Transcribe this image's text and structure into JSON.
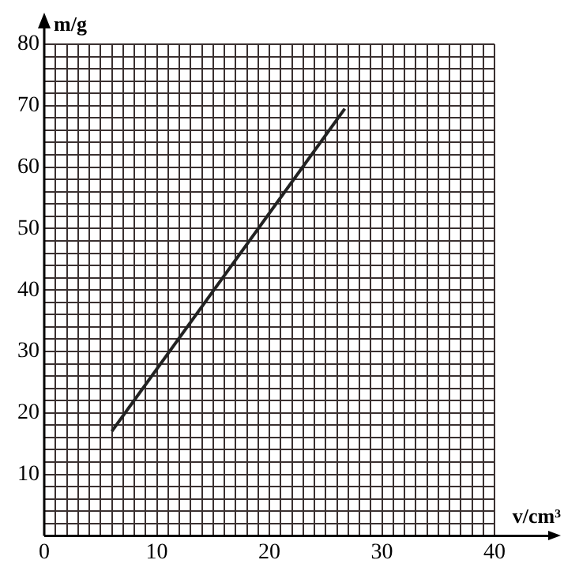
{
  "chart_data": {
    "type": "line",
    "xlabel": "v/cm³",
    "ylabel": "m/g",
    "x": [
      6,
      26.7
    ],
    "series": [
      {
        "color": "#222222",
        "values": [
          17,
          69.5
        ]
      }
    ],
    "xlim": [
      0,
      40
    ],
    "ylim": [
      0,
      80
    ],
    "xticks": [
      0,
      {
        "value": 1,
        "label": null
      },
      {
        "value": 2,
        "label": null
      },
      {
        "value": 3,
        "label": null
      },
      {
        "value": 4,
        "label": null
      },
      {
        "value": 5,
        "label": null
      },
      {
        "value": 6,
        "label": null
      },
      {
        "value": 7,
        "label": null
      },
      {
        "value": 8,
        "label": null
      },
      {
        "value": 9,
        "label": null
      },
      10,
      {
        "value": 11,
        "label": null
      },
      {
        "value": 12,
        "label": null
      },
      {
        "value": 13,
        "label": null
      },
      {
        "value": 14,
        "label": null
      },
      {
        "value": 15,
        "label": null
      },
      {
        "value": 16,
        "label": null
      },
      {
        "value": 17,
        "label": null
      },
      {
        "value": 18,
        "label": null
      },
      {
        "value": 19,
        "label": null
      },
      20,
      {
        "value": 21,
        "label": null
      },
      {
        "value": 22,
        "label": null
      },
      {
        "value": 23,
        "label": null
      },
      {
        "value": 24,
        "label": null
      },
      {
        "value": 25,
        "label": null
      },
      {
        "value": 26,
        "label": null
      },
      {
        "value": 27,
        "label": null
      },
      {
        "value": 28,
        "label": null
      },
      {
        "value": 29,
        "label": null
      },
      30,
      {
        "value": 31,
        "label": null
      },
      {
        "value": 32,
        "label": null
      },
      {
        "value": 33,
        "label": null
      },
      {
        "value": 34,
        "label": null
      },
      {
        "value": 35,
        "label": null
      },
      {
        "value": 36,
        "label": null
      },
      {
        "value": 37,
        "label": null
      },
      {
        "value": 38,
        "label": null
      },
      {
        "value": 39,
        "label": null
      },
      40
    ],
    "yticks": [
      {
        "value": 0,
        "label": null
      },
      {
        "value": 2,
        "label": null
      },
      {
        "value": 4,
        "label": null
      },
      {
        "value": 6,
        "label": null
      },
      {
        "value": 8,
        "label": null
      },
      10,
      {
        "value": 12,
        "label": null
      },
      {
        "value": 14,
        "label": null
      },
      {
        "value": 16,
        "label": null
      },
      {
        "value": 18,
        "label": null
      },
      20,
      {
        "value": 22,
        "label": null
      },
      {
        "value": 24,
        "label": null
      },
      {
        "value": 26,
        "label": null
      },
      {
        "value": 28,
        "label": null
      },
      30,
      {
        "value": 32,
        "label": null
      },
      {
        "value": 34,
        "label": null
      },
      {
        "value": 36,
        "label": null
      },
      {
        "value": 38,
        "label": null
      },
      40,
      {
        "value": 42,
        "label": null
      },
      {
        "value": 44,
        "label": null
      },
      {
        "value": 46,
        "label": null
      },
      {
        "value": 48,
        "label": null
      },
      50,
      {
        "value": 52,
        "label": null
      },
      {
        "value": 54,
        "label": null
      },
      {
        "value": 56,
        "label": null
      },
      {
        "value": 58,
        "label": null
      },
      60,
      {
        "value": 62,
        "label": null
      },
      {
        "value": 64,
        "label": null
      },
      {
        "value": 66,
        "label": null
      },
      {
        "value": 68,
        "label": null
      },
      70,
      {
        "value": 72,
        "label": null
      },
      {
        "value": 74,
        "label": null
      },
      {
        "value": 76,
        "label": null
      },
      {
        "value": 78,
        "label": null
      },
      80
    ],
    "grid": true,
    "legend": false,
    "marker": "none",
    "line_style": "solid"
  }
}
